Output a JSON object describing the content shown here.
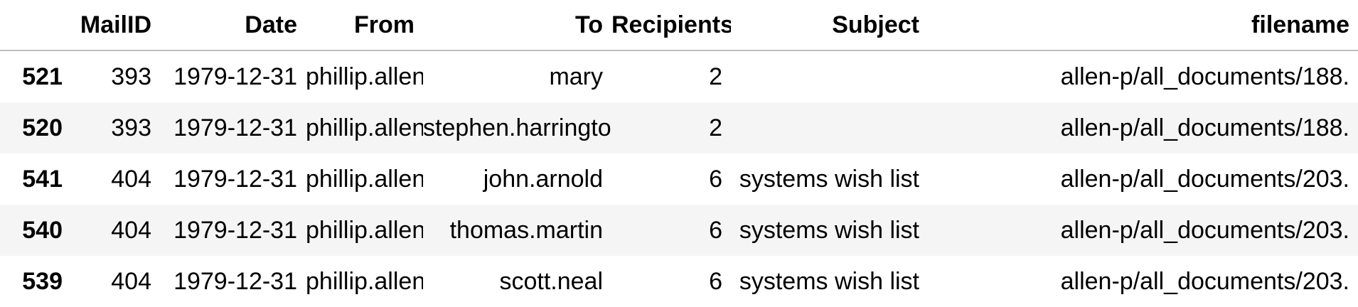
{
  "table": {
    "columns": [
      "",
      "MailID",
      "Date",
      "From",
      "To",
      "Recipients",
      "Subject",
      "filename"
    ],
    "rows": [
      {
        "index": "521",
        "mail_id": "393",
        "date": "1979-12-31",
        "from": "phillip.allen",
        "to": "mary",
        "recipients": "2",
        "subject": "",
        "filename": "allen-p/all_documents/188."
      },
      {
        "index": "520",
        "mail_id": "393",
        "date": "1979-12-31",
        "from": "phillip.allen",
        "to": "stephen.harrington",
        "recipients": "2",
        "subject": "",
        "filename": "allen-p/all_documents/188."
      },
      {
        "index": "541",
        "mail_id": "404",
        "date": "1979-12-31",
        "from": "phillip.allen",
        "to": "john.arnold",
        "recipients": "6",
        "subject": "systems wish list",
        "filename": "allen-p/all_documents/203."
      },
      {
        "index": "540",
        "mail_id": "404",
        "date": "1979-12-31",
        "from": "phillip.allen",
        "to": "thomas.martin",
        "recipients": "6",
        "subject": "systems wish list",
        "filename": "allen-p/all_documents/203."
      },
      {
        "index": "539",
        "mail_id": "404",
        "date": "1979-12-31",
        "from": "phillip.allen",
        "to": "scott.neal",
        "recipients": "6",
        "subject": "systems wish list",
        "filename": "allen-p/all_documents/203."
      }
    ]
  }
}
